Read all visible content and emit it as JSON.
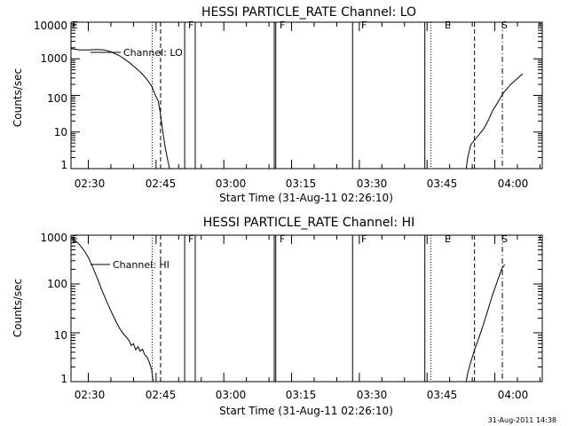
{
  "footer_date": "31-Aug-2011 14:38",
  "line_color": "#000000",
  "background_color": "#ffffff",
  "chart_data": [
    {
      "type": "line",
      "title": "HESSI PARTICLE_RATE Channel: LO",
      "xlabel": "Start Time (31-Aug-11 02:26:10)",
      "ylabel": "Counts/sec",
      "xlim": [
        "02:26:10",
        "04:10:30"
      ],
      "ylim": [
        1,
        10000
      ],
      "yscale": "log",
      "x_ticks": [
        "02:30",
        "02:45",
        "03:00",
        "03:15",
        "03:30",
        "03:45",
        "04:00"
      ],
      "y_ticks": [
        "1",
        "10",
        "100",
        "1000",
        "10000"
      ],
      "grid": false,
      "legend": {
        "position": "top-left",
        "entries": [
          "Channel: LO"
        ]
      },
      "annotations": [
        "E",
        "F",
        "F",
        "F",
        "E",
        "S"
      ],
      "series": [
        {
          "name": "Channel: LO",
          "x": [
            "02:26:10",
            "02:28:00",
            "02:30:00",
            "02:32:00",
            "02:33:30",
            "02:35:00",
            "02:37:00",
            "02:39:00",
            "02:41:00",
            "02:42:00",
            "02:43:00",
            "02:44:00",
            "02:44:30",
            "02:45:00",
            "02:45:30",
            "02:46:00",
            "02:46:30",
            "02:47:00",
            "02:47:40",
            "02:48:00",
            null,
            "03:53:40",
            "03:54:00",
            "03:54:40",
            "03:55:30",
            "03:56:30",
            "03:57:30",
            "03:58:30",
            "03:59:30",
            "04:00:30",
            "04:01:00",
            "04:02:00",
            "04:03:30",
            "04:05:30",
            "04:06:10"
          ],
          "y": [
            1900,
            1750,
            1750,
            1800,
            1750,
            1550,
            1200,
            800,
            500,
            380,
            270,
            180,
            130,
            90,
            70,
            30,
            10,
            4,
            1.5,
            1,
            null,
            1,
            2,
            4.5,
            6,
            8.5,
            12,
            20,
            38,
            60,
            78,
            120,
            200,
            330,
            390
          ]
        }
      ],
      "events": [
        {
          "x": "02:44:10",
          "style": "dotted"
        },
        {
          "x": "02:46:00",
          "style": "dashed"
        },
        {
          "x": "02:51:20",
          "style": "solid"
        },
        {
          "x": "02:53:40",
          "style": "solid"
        },
        {
          "x": "03:11:10",
          "style": "solid"
        },
        {
          "x": "03:11:30",
          "style": "solid"
        },
        {
          "x": "03:28:30",
          "style": "solid"
        },
        {
          "x": "03:44:30",
          "style": "solid"
        },
        {
          "x": "03:45:50",
          "style": "dotted"
        },
        {
          "x": "03:55:30",
          "style": "dashed"
        },
        {
          "x": "04:01:40",
          "style": "dashdot"
        }
      ]
    },
    {
      "type": "line",
      "title": "HESSI PARTICLE_RATE Channel: HI",
      "xlabel": "Start Time (31-Aug-11 02:26:10)",
      "ylabel": "Counts/sec",
      "xlim": [
        "02:26:10",
        "04:10:30"
      ],
      "ylim": [
        1,
        1000
      ],
      "yscale": "log",
      "x_ticks": [
        "02:30",
        "02:45",
        "03:00",
        "03:15",
        "03:30",
        "03:45",
        "04:00"
      ],
      "y_ticks": [
        "1",
        "10",
        "100",
        "1000"
      ],
      "grid": false,
      "legend": {
        "position": "top-left",
        "entries": [
          "Channel: HI"
        ]
      },
      "annotations": [
        "E",
        "F",
        "F",
        "F",
        "E",
        "S"
      ],
      "series": [
        {
          "name": "Channel: HI",
          "x": [
            "02:26:10",
            "02:27:00",
            "02:28:00",
            "02:29:00",
            "02:30:00",
            "02:31:00",
            "02:32:00",
            "02:33:00",
            "02:34:00",
            "02:35:00",
            "02:36:00",
            "02:37:00",
            "02:38:00",
            "02:38:30",
            "02:39:00",
            "02:39:30",
            "02:40:00",
            "02:40:30",
            "02:41:00",
            "02:41:30",
            "02:42:00",
            "02:42:30",
            "02:43:00",
            "02:43:30",
            "02:44:00",
            "02:44:20",
            null,
            "03:53:40",
            "03:54:00",
            "03:54:40",
            "03:55:30",
            "03:56:30",
            "03:57:30",
            "03:58:30",
            "03:59:30",
            "04:00:30",
            "04:01:30",
            "04:02:10"
          ],
          "y": [
            900,
            780,
            650,
            500,
            350,
            220,
            130,
            75,
            45,
            28,
            18,
            12,
            9,
            8,
            7,
            5.5,
            6,
            4.5,
            5.2,
            4.2,
            4.6,
            3.5,
            3.2,
            2.5,
            1.8,
            1,
            null,
            1,
            1.5,
            2.5,
            4.5,
            8,
            15,
            30,
            60,
            110,
            200,
            250
          ]
        }
      ],
      "events": [
        {
          "x": "02:44:10",
          "style": "dotted"
        },
        {
          "x": "02:46:00",
          "style": "dashed"
        },
        {
          "x": "02:51:20",
          "style": "solid"
        },
        {
          "x": "02:53:40",
          "style": "solid"
        },
        {
          "x": "03:11:10",
          "style": "solid"
        },
        {
          "x": "03:11:30",
          "style": "solid"
        },
        {
          "x": "03:28:30",
          "style": "solid"
        },
        {
          "x": "03:44:30",
          "style": "solid"
        },
        {
          "x": "03:45:50",
          "style": "dotted"
        },
        {
          "x": "03:55:30",
          "style": "dashed"
        },
        {
          "x": "04:01:40",
          "style": "dashdot"
        }
      ]
    }
  ]
}
